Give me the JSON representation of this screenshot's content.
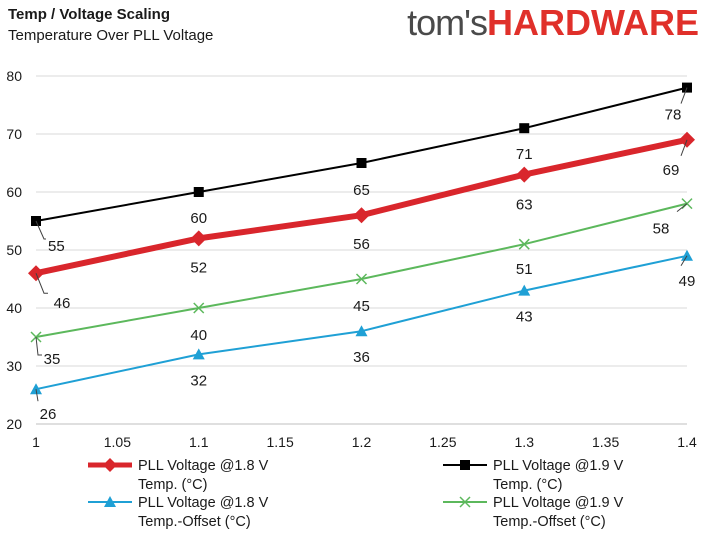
{
  "header": {
    "title": "Temp / Voltage Scaling",
    "subtitle": "Temperature Over PLL Voltage",
    "logo_part1": "tom's",
    "logo_part2": "HARDWARE"
  },
  "chart_data": {
    "type": "line",
    "title": "Temp / Voltage Scaling",
    "subtitle": "Temperature Over PLL Voltage",
    "xlabel": "",
    "ylabel": "",
    "x": [
      1,
      1.1,
      1.2,
      1.3,
      1.4
    ],
    "xlim": [
      1,
      1.4
    ],
    "ylim": [
      20,
      80
    ],
    "x_ticks": [
      "1",
      "1.05",
      "1.1",
      "1.15",
      "1.2",
      "1.25",
      "1.3",
      "1.35",
      "1.4"
    ],
    "y_ticks": [
      "20",
      "30",
      "40",
      "50",
      "60",
      "70",
      "80"
    ],
    "grid": "horizontal",
    "legend_position": "bottom",
    "series": [
      {
        "name": "PLL Voltage @1.8 V Temp. (°C)",
        "color": "#d9262c",
        "marker": "diamond",
        "values": [
          46,
          52,
          56,
          63,
          69
        ],
        "labels": [
          "46",
          "52",
          "56",
          "63",
          "69"
        ]
      },
      {
        "name": "PLL Voltage @1.9 V Temp. (°C)",
        "color": "#000000",
        "marker": "square",
        "values": [
          55,
          60,
          65,
          71,
          78
        ],
        "labels": [
          "55",
          "60",
          "65",
          "71",
          "78"
        ]
      },
      {
        "name": "PLL Voltage @1.8 V Temp.-Offset (°C)",
        "color": "#1fa0d5",
        "marker": "triangle",
        "values": [
          26,
          32,
          36,
          43,
          49
        ],
        "labels": [
          "26",
          "32",
          "36",
          "43",
          "49"
        ]
      },
      {
        "name": "PLL Voltage @1.9 V Temp.-Offset (°C)",
        "color": "#5cb85c",
        "marker": "x",
        "values": [
          35,
          40,
          45,
          51,
          58
        ],
        "labels": [
          "35",
          "40",
          "45",
          "51",
          "58"
        ]
      }
    ]
  },
  "legend": [
    {
      "line1": "PLL Voltage @1.8 V",
      "line2": "Temp. (°C)"
    },
    {
      "line1": "PLL Voltage @1.9 V",
      "line2": "Temp. (°C)"
    },
    {
      "line1": "PLL Voltage @1.8 V",
      "line2": "Temp.-Offset (°C)"
    },
    {
      "line1": "PLL Voltage @1.9 V",
      "line2": "Temp.-Offset (°C)"
    }
  ]
}
